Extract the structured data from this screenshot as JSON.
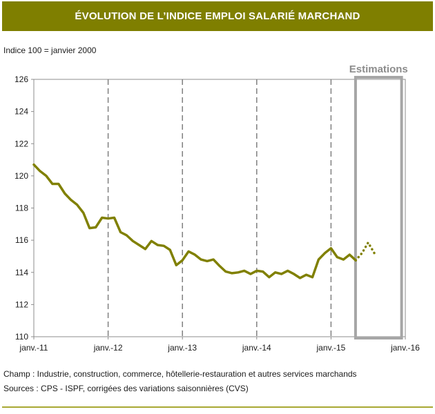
{
  "header": {
    "title": "ÉVOLUTION DE L’INDICE EMPLOI SALARIÉ MARCHAND"
  },
  "footer": {
    "champ": "Champ : Industrie, construction, commerce, hôtellerie-restauration et autres services marchands",
    "sources": "Sources : CPS - ISPF, corrigées des variations saisonnières (CVS)"
  },
  "colors": {
    "accent": "#7f7f00",
    "line": "#808000",
    "estimation_box": "#a6a6a6",
    "grid": "#7f7f7f"
  },
  "chart_data": {
    "type": "line",
    "title": "ÉVOLUTION DE L’INDICE EMPLOI SALARIÉ MARCHAND",
    "subtitle": "Indice 100 = janvier 2000",
    "xlabel": "",
    "ylabel": "",
    "ylim": [
      110,
      126
    ],
    "yticks": [
      110,
      112,
      114,
      116,
      118,
      120,
      122,
      124,
      126
    ],
    "xlim": [
      2011.0,
      2016.0
    ],
    "xticks": [
      {
        "x": 2011.0,
        "label": "janv.-11"
      },
      {
        "x": 2012.0,
        "label": "janv.-12"
      },
      {
        "x": 2013.0,
        "label": "janv.-13"
      },
      {
        "x": 2014.0,
        "label": "janv.-14"
      },
      {
        "x": 2015.0,
        "label": "janv.-15"
      },
      {
        "x": 2016.0,
        "label": "janv.-16"
      }
    ],
    "grid": "vertical-dashed",
    "annotation": {
      "label": "Estimations",
      "x_start": 2015.33,
      "x_end": 2015.95
    },
    "series": [
      {
        "name": "Indice emploi salarié marchand",
        "style": "solid",
        "x": [
          2011.0,
          2011.083,
          2011.167,
          2011.25,
          2011.333,
          2011.417,
          2011.5,
          2011.583,
          2011.667,
          2011.75,
          2011.833,
          2011.917,
          2012.0,
          2012.083,
          2012.167,
          2012.25,
          2012.333,
          2012.417,
          2012.5,
          2012.583,
          2012.667,
          2012.75,
          2012.833,
          2012.917,
          2013.0,
          2013.083,
          2013.167,
          2013.25,
          2013.333,
          2013.417,
          2013.5,
          2013.583,
          2013.667,
          2013.75,
          2013.833,
          2013.917,
          2014.0,
          2014.083,
          2014.167,
          2014.25,
          2014.333,
          2014.417,
          2014.5,
          2014.583,
          2014.667,
          2014.75,
          2014.833,
          2014.917,
          2015.0,
          2015.083,
          2015.167,
          2015.25,
          2015.333
        ],
        "values": [
          120.7,
          120.3,
          120.0,
          119.5,
          119.5,
          118.9,
          118.5,
          118.2,
          117.7,
          116.75,
          116.8,
          117.4,
          117.35,
          117.4,
          116.5,
          116.3,
          115.95,
          115.7,
          115.45,
          115.95,
          115.7,
          115.65,
          115.4,
          114.45,
          114.75,
          115.3,
          115.1,
          114.8,
          114.7,
          114.8,
          114.4,
          114.05,
          113.95,
          114.0,
          114.1,
          113.9,
          114.1,
          114.05,
          113.7,
          114.0,
          113.9,
          114.1,
          113.9,
          113.65,
          113.85,
          113.7,
          114.8,
          115.2,
          115.5,
          114.95,
          114.8,
          115.1,
          114.75
        ]
      },
      {
        "name": "Estimations",
        "style": "dotted",
        "x": [
          2015.333,
          2015.417,
          2015.5,
          2015.583
        ],
        "values": [
          114.75,
          115.2,
          115.85,
          115.2
        ]
      }
    ]
  }
}
